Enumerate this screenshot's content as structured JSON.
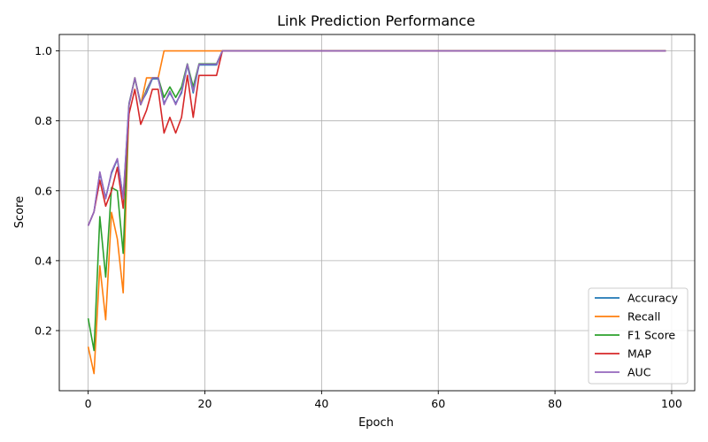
{
  "chart_data": {
    "type": "line",
    "title": "Link Prediction Performance",
    "xlabel": "Epoch",
    "ylabel": "Score",
    "xlim": [
      -4.95,
      103.95
    ],
    "ylim": [
      0.028,
      1.047
    ],
    "xticks": [
      0,
      20,
      40,
      60,
      80,
      100
    ],
    "yticks": [
      0.2,
      0.4,
      0.6,
      0.8,
      1.0
    ],
    "ytick_labels": [
      "0.2",
      "0.4",
      "0.6",
      "0.8",
      "1.0"
    ],
    "grid": true,
    "legend_position": "lower right",
    "series": [
      {
        "name": "Accuracy",
        "color": "#1f77b4",
        "x": [
          0,
          1,
          2,
          3,
          4,
          5,
          6,
          7,
          8,
          9,
          10,
          11,
          12,
          13,
          14,
          15,
          16,
          17,
          18,
          19,
          20,
          21,
          22,
          23,
          99
        ],
        "values": [
          0.5,
          0.54,
          0.65,
          0.58,
          0.65,
          0.69,
          0.58,
          0.85,
          0.92,
          0.85,
          0.88,
          0.92,
          0.92,
          0.85,
          0.88,
          0.85,
          0.88,
          0.96,
          0.88,
          0.96,
          0.96,
          0.96,
          0.96,
          1.0,
          1.0
        ]
      },
      {
        "name": "Recall",
        "color": "#ff7f0e",
        "x": [
          0,
          1,
          2,
          3,
          4,
          5,
          6,
          7,
          8,
          9,
          10,
          11,
          12,
          13,
          14,
          15,
          16,
          17,
          18,
          19,
          20,
          21,
          22,
          23,
          99
        ],
        "values": [
          0.154,
          0.077,
          0.385,
          0.231,
          0.538,
          0.462,
          0.308,
          0.846,
          0.923,
          0.846,
          0.923,
          0.923,
          0.923,
          1.0,
          1.0,
          1.0,
          1.0,
          1.0,
          1.0,
          1.0,
          1.0,
          1.0,
          1.0,
          1.0,
          1.0
        ]
      },
      {
        "name": "F1 Score",
        "color": "#2ca02c",
        "x": [
          0,
          1,
          2,
          3,
          4,
          5,
          6,
          7,
          8,
          9,
          10,
          11,
          12,
          13,
          14,
          15,
          16,
          17,
          18,
          19,
          20,
          21,
          22,
          23,
          99
        ],
        "values": [
          0.235,
          0.143,
          0.526,
          0.353,
          0.609,
          0.6,
          0.421,
          0.846,
          0.923,
          0.846,
          0.889,
          0.923,
          0.923,
          0.867,
          0.897,
          0.867,
          0.897,
          0.963,
          0.897,
          0.963,
          0.963,
          0.963,
          0.963,
          1.0,
          1.0
        ]
      },
      {
        "name": "MAP",
        "color": "#d62728",
        "x": [
          0,
          1,
          2,
          3,
          4,
          5,
          6,
          7,
          8,
          9,
          10,
          11,
          12,
          13,
          14,
          15,
          16,
          17,
          18,
          19,
          20,
          21,
          22,
          23,
          99
        ],
        "values": [
          0.5,
          0.54,
          0.63,
          0.556,
          0.6,
          0.667,
          0.55,
          0.82,
          0.89,
          0.79,
          0.83,
          0.89,
          0.89,
          0.765,
          0.81,
          0.765,
          0.81,
          0.93,
          0.81,
          0.93,
          0.93,
          0.93,
          0.93,
          1.0,
          1.0
        ]
      },
      {
        "name": "AUC",
        "color": "#9467bd",
        "x": [
          0,
          1,
          2,
          3,
          4,
          5,
          6,
          7,
          8,
          9,
          10,
          11,
          12,
          13,
          14,
          15,
          16,
          17,
          18,
          19,
          20,
          21,
          22,
          23,
          99
        ],
        "values": [
          0.5,
          0.54,
          0.654,
          0.577,
          0.654,
          0.692,
          0.577,
          0.846,
          0.923,
          0.846,
          0.885,
          0.923,
          0.923,
          0.846,
          0.885,
          0.846,
          0.885,
          0.962,
          0.885,
          0.962,
          0.962,
          0.962,
          0.962,
          1.0,
          1.0
        ]
      }
    ]
  }
}
